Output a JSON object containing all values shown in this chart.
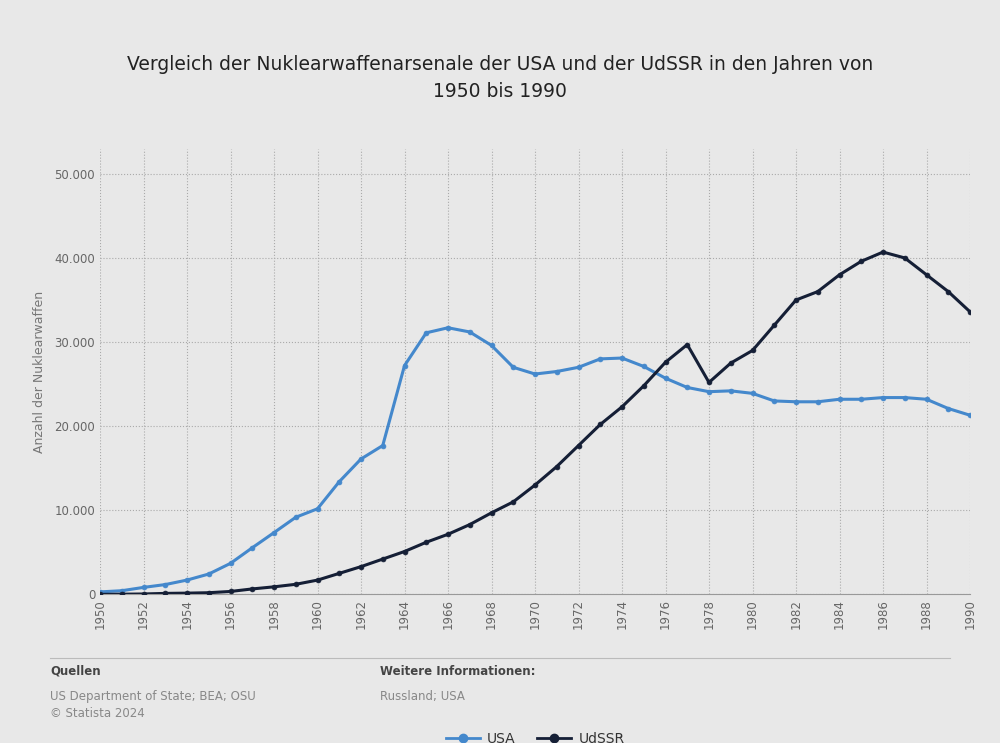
{
  "title": "Vergleich der Nuklearwaffenarsenale der USA und der UdSSR in den Jahren von\n1950 bis 1990",
  "ylabel": "Anzahl der Nuklearwaffen",
  "background_color": "#e8e8e8",
  "plot_background_color": "#e8e8e8",
  "usa_color": "#4488cc",
  "ussr_color": "#151f36",
  "ylim": [
    0,
    53000
  ],
  "yticks": [
    0,
    10000,
    20000,
    30000,
    40000,
    50000
  ],
  "ytick_labels": [
    "0",
    "10.000",
    "20.000",
    "30.000",
    "40.000",
    "50.000"
  ],
  "years": [
    1950,
    1951,
    1952,
    1953,
    1954,
    1955,
    1956,
    1957,
    1958,
    1959,
    1960,
    1961,
    1962,
    1963,
    1964,
    1965,
    1966,
    1967,
    1968,
    1969,
    1970,
    1971,
    1972,
    1973,
    1974,
    1975,
    1976,
    1977,
    1978,
    1979,
    1980,
    1981,
    1982,
    1983,
    1984,
    1985,
    1986,
    1987,
    1988,
    1989,
    1990
  ],
  "usa_values": [
    299,
    438,
    832,
    1169,
    1703,
    2422,
    3692,
    5543,
    7345,
    9170,
    10180,
    13400,
    16100,
    17700,
    27200,
    31100,
    31700,
    31200,
    29600,
    27000,
    26200,
    26500,
    27000,
    28000,
    28100,
    27100,
    25700,
    24600,
    24100,
    24200,
    23900,
    23000,
    22900,
    22900,
    23200,
    23200,
    23400,
    23400,
    23200,
    22100,
    21300
  ],
  "ussr_values": [
    5,
    25,
    50,
    120,
    150,
    200,
    350,
    650,
    900,
    1200,
    1700,
    2500,
    3300,
    4200,
    5100,
    6200,
    7150,
    8300,
    9700,
    11000,
    13000,
    15200,
    17700,
    20200,
    22300,
    24800,
    27600,
    29700,
    25200,
    27500,
    29000,
    32000,
    35000,
    36000,
    38000,
    39600,
    40700,
    40000,
    38000,
    36000,
    33600
  ],
  "legend_labels": [
    "USA",
    "UdSSR"
  ],
  "sources_label": "Quellen",
  "sources_text": "US Department of State; BEA; OSU\n© Statista 2024",
  "info_label": "Weitere Informationen:",
  "info_text": "Russland; USA",
  "title_fontsize": 13.5,
  "axis_label_fontsize": 9,
  "tick_fontsize": 8.5,
  "legend_fontsize": 10,
  "footer_fontsize": 8.5
}
